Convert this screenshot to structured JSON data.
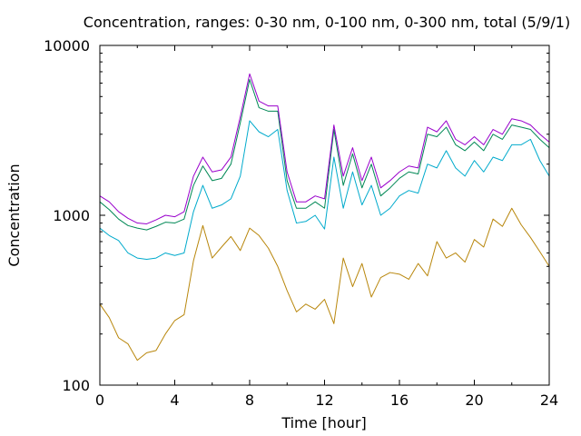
{
  "chart_data": {
    "type": "line",
    "title": "Concentration, ranges: 0-30 nm, 0-100 nm, 0-300 nm, total (5/9/1)",
    "xlabel": "Time [hour]",
    "ylabel": "Concentration",
    "xlim": [
      0,
      24
    ],
    "ylim": [
      100,
      10000
    ],
    "yscale": "log",
    "x_ticks": [
      0,
      4,
      8,
      12,
      16,
      20,
      24
    ],
    "x_tick_labels": [
      "0",
      "4",
      "8",
      "12",
      "16",
      "20",
      "24"
    ],
    "y_ticks": [
      100,
      1000,
      10000
    ],
    "y_tick_labels": [
      "100",
      "1000",
      "10000"
    ],
    "grid": false,
    "legend": "none",
    "x": [
      0,
      0.5,
      1,
      1.5,
      2,
      2.5,
      3,
      3.5,
      4,
      4.5,
      5,
      5.5,
      6,
      6.5,
      7,
      7.5,
      8,
      8.5,
      9,
      9.5,
      10,
      10.5,
      11,
      11.5,
      12,
      12.5,
      13,
      13.5,
      14,
      14.5,
      15,
      15.5,
      16,
      16.5,
      17,
      17.5,
      18,
      18.5,
      19,
      19.5,
      20,
      20.5,
      21,
      21.5,
      22,
      22.5,
      23,
      23.5,
      24
    ],
    "series": [
      {
        "color": "#b8860b",
        "values": [
          300,
          250,
          190,
          175,
          140,
          155,
          160,
          200,
          240,
          260,
          540,
          870,
          560,
          650,
          750,
          620,
          840,
          760,
          640,
          500,
          360,
          270,
          300,
          280,
          320,
          230,
          560,
          380,
          520,
          330,
          430,
          460,
          450,
          420,
          520,
          440,
          700,
          560,
          600,
          530,
          720,
          650,
          950,
          860,
          1100,
          880,
          740,
          610,
          500
        ]
      },
      {
        "color": "#00aacc",
        "values": [
          840,
          760,
          710,
          600,
          560,
          550,
          560,
          600,
          580,
          600,
          1050,
          1500,
          1100,
          1150,
          1250,
          1700,
          3600,
          3100,
          2900,
          3200,
          1400,
          900,
          920,
          1000,
          830,
          2200,
          1100,
          1800,
          1150,
          1500,
          1000,
          1100,
          1300,
          1400,
          1350,
          2000,
          1900,
          2400,
          1900,
          1700,
          2100,
          1800,
          2200,
          2100,
          2600,
          2600,
          2800,
          2100,
          1700
        ]
      },
      {
        "color": "#008855",
        "values": [
          1200,
          1080,
          950,
          870,
          840,
          820,
          860,
          910,
          900,
          950,
          1500,
          1950,
          1600,
          1650,
          2000,
          3500,
          6300,
          4300,
          4100,
          4100,
          1600,
          1100,
          1100,
          1200,
          1100,
          3200,
          1500,
          2300,
          1450,
          2000,
          1300,
          1450,
          1650,
          1800,
          1750,
          3000,
          2900,
          3300,
          2600,
          2400,
          2700,
          2400,
          3000,
          2800,
          3400,
          3300,
          3200,
          2800,
          2500
        ]
      },
      {
        "color": "#9900cc",
        "values": [
          1300,
          1200,
          1050,
          960,
          900,
          890,
          940,
          1000,
          980,
          1050,
          1700,
          2200,
          1800,
          1850,
          2200,
          3800,
          6800,
          4700,
          4400,
          4400,
          1800,
          1200,
          1200,
          1300,
          1250,
          3400,
          1700,
          2500,
          1600,
          2200,
          1450,
          1600,
          1800,
          1950,
          1900,
          3300,
          3100,
          3600,
          2800,
          2600,
          2900,
          2600,
          3200,
          3000,
          3700,
          3600,
          3400,
          3000,
          2700
        ]
      }
    ]
  }
}
